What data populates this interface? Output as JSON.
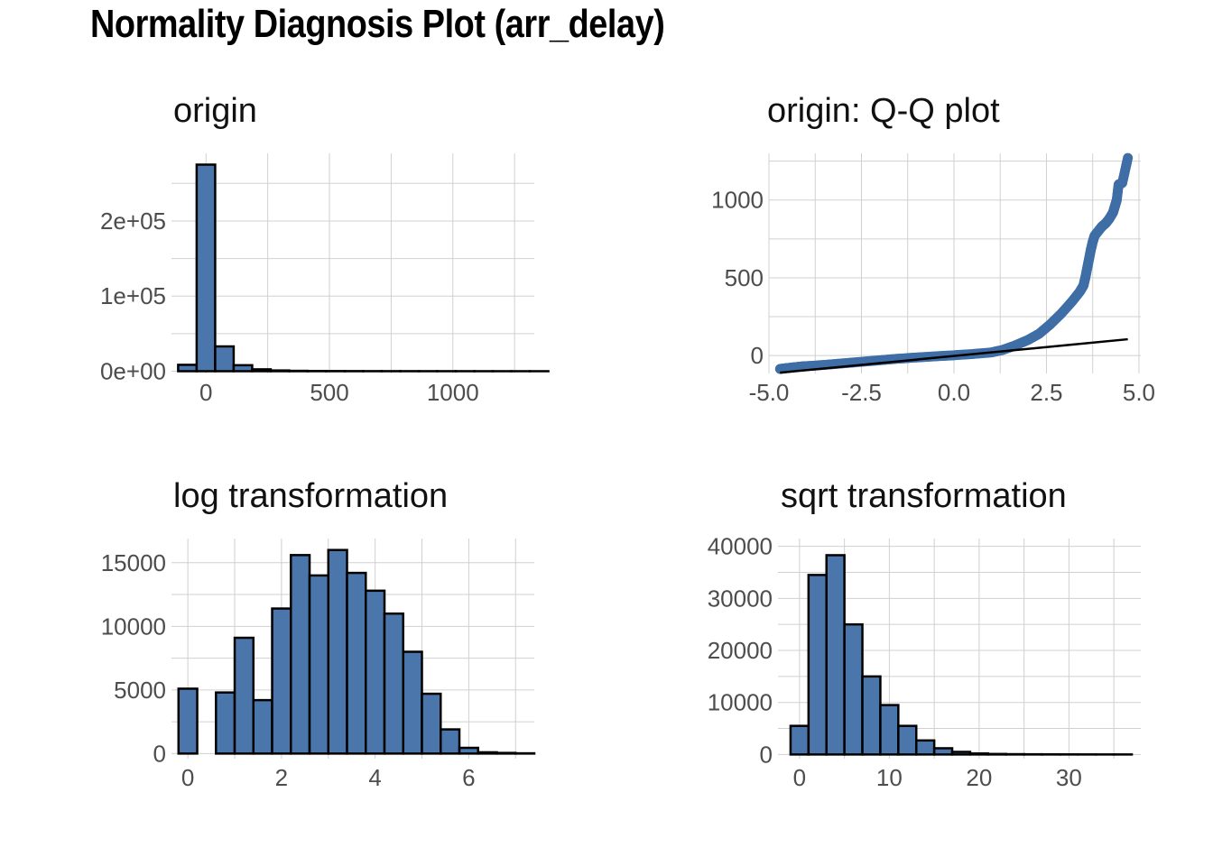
{
  "title": "Normality Diagnosis Plot (arr_delay)",
  "colors": {
    "bar_fill": "#4a76ab",
    "bar_stroke": "#000000",
    "point": "#3f6ea6",
    "line": "#000000",
    "grid": "#d0d0d0",
    "tick_text": "#4d4d4d"
  },
  "chart_data": [
    {
      "type": "bar",
      "title": "origin",
      "xlabel": "",
      "ylabel": "",
      "xlim": [
        -140,
        1330
      ],
      "ylim": [
        -3000,
        290000
      ],
      "x_ticks": [
        0,
        500,
        1000
      ],
      "x_tick_labels": [
        "0",
        "500",
        "1000"
      ],
      "y_ticks": [
        0,
        100000,
        200000
      ],
      "y_tick_labels": [
        "0e+00",
        "1e+05",
        "2e+05"
      ],
      "bin_start": -113,
      "bin_width": 75,
      "values": [
        8500,
        275000,
        33000,
        8000,
        2500,
        1000,
        500,
        300,
        200,
        150,
        120,
        100,
        80,
        60,
        50,
        40,
        30,
        25,
        20,
        15
      ],
      "grid": true
    },
    {
      "type": "scatter",
      "title": "origin: Q-Q plot",
      "xlabel": "",
      "ylabel": "",
      "xlim": [
        -5,
        5.05
      ],
      "ylim": [
        -115,
        1300
      ],
      "x_ticks": [
        -5,
        -2.5,
        0,
        2.5,
        5
      ],
      "x_tick_labels": [
        "-5.0",
        "-2.5",
        "0.0",
        "2.5",
        "5.0"
      ],
      "y_ticks": [
        0,
        500,
        1000
      ],
      "y_tick_labels": [
        "0",
        "500",
        "1000"
      ],
      "points": [
        [
          -4.7,
          -86
        ],
        [
          -4.5,
          -80
        ],
        [
          -4.2,
          -72
        ],
        [
          -4.0,
          -68
        ],
        [
          -3.5,
          -60
        ],
        [
          -3.0,
          -50
        ],
        [
          -2.5,
          -40
        ],
        [
          -2.0,
          -30
        ],
        [
          -1.5,
          -20
        ],
        [
          -1.0,
          -12
        ],
        [
          -0.5,
          -5
        ],
        [
          0.0,
          2
        ],
        [
          0.5,
          10
        ],
        [
          1.0,
          20
        ],
        [
          1.3,
          35
        ],
        [
          1.6,
          60
        ],
        [
          2.0,
          100
        ],
        [
          2.3,
          140
        ],
        [
          2.6,
          200
        ],
        [
          2.9,
          270
        ],
        [
          3.2,
          350
        ],
        [
          3.4,
          410
        ],
        [
          3.5,
          450
        ],
        [
          3.55,
          500
        ],
        [
          3.6,
          560
        ],
        [
          3.65,
          620
        ],
        [
          3.7,
          680
        ],
        [
          3.75,
          730
        ],
        [
          3.8,
          770
        ],
        [
          3.9,
          800
        ],
        [
          4.0,
          830
        ],
        [
          4.1,
          850
        ],
        [
          4.2,
          880
        ],
        [
          4.3,
          920
        ],
        [
          4.35,
          960
        ],
        [
          4.4,
          1000
        ],
        [
          4.45,
          1100
        ],
        [
          4.55,
          1110
        ],
        [
          4.7,
          1270
        ]
      ],
      "ref_line": [
        [
          -4.7,
          -110
        ],
        [
          4.7,
          105
        ]
      ],
      "grid": true
    },
    {
      "type": "bar",
      "title": "log transformation",
      "xlabel": "",
      "ylabel": "",
      "xlim": [
        -0.35,
        7.4
      ],
      "ylim": [
        -400,
        16900
      ],
      "x_ticks": [
        0,
        2,
        4,
        6
      ],
      "x_tick_labels": [
        "0",
        "2",
        "4",
        "6"
      ],
      "y_ticks": [
        0,
        5000,
        10000,
        15000
      ],
      "y_tick_labels": [
        "0",
        "5000",
        "10000",
        "15000"
      ],
      "bin_start": -0.2,
      "bin_width": 0.4,
      "values": [
        5100,
        0,
        4800,
        9100,
        4200,
        11400,
        15600,
        14000,
        16000,
        14200,
        12800,
        11000,
        8000,
        4700,
        1900,
        450,
        100,
        50,
        20
      ],
      "grid": true
    },
    {
      "type": "bar",
      "title": "sqrt transformation",
      "xlabel": "",
      "ylabel": "",
      "xlim": [
        -2.4,
        38
      ],
      "ylim": [
        -800,
        41500
      ],
      "x_ticks": [
        0,
        10,
        20,
        30
      ],
      "x_tick_labels": [
        "0",
        "10",
        "20",
        "30"
      ],
      "y_ticks": [
        0,
        10000,
        20000,
        30000,
        40000
      ],
      "y_tick_labels": [
        "0",
        "10000",
        "20000",
        "30000",
        "40000"
      ],
      "bin_start": -1,
      "bin_width": 2,
      "values": [
        5500,
        34500,
        38300,
        25000,
        15000,
        9500,
        5500,
        2700,
        1200,
        500,
        200,
        100,
        60,
        40,
        30,
        20,
        15,
        10,
        8
      ],
      "grid": true
    }
  ]
}
